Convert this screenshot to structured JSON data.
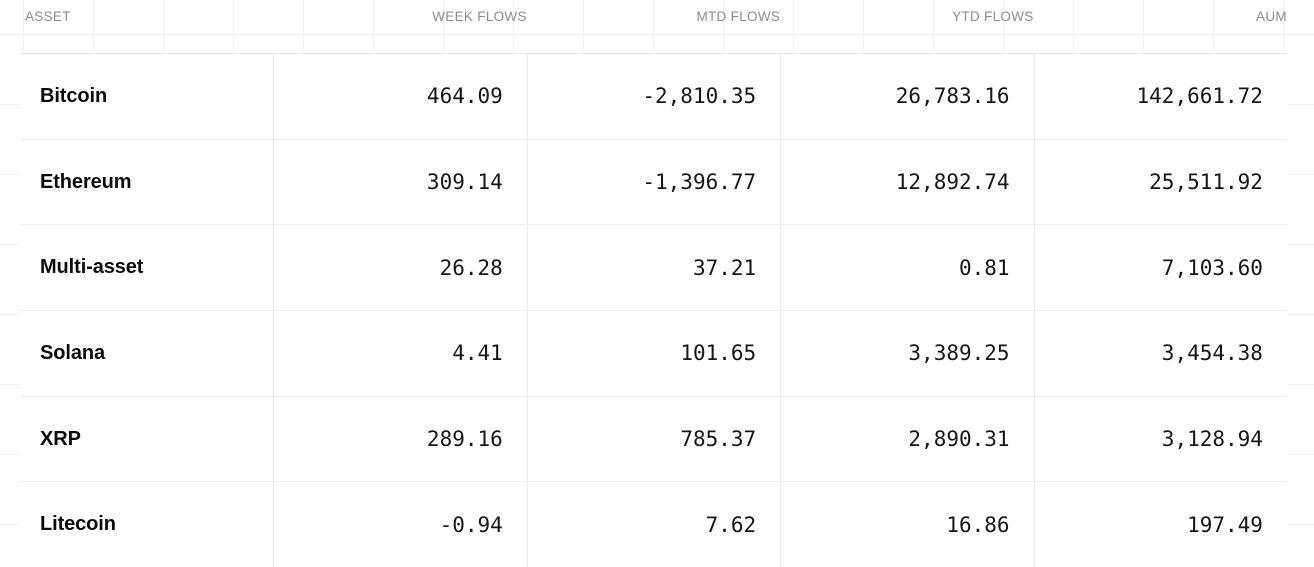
{
  "chart_data": {
    "type": "table",
    "columns": [
      "ASSET",
      "WEEK FLOWS",
      "MTD FLOWS",
      "YTD FLOWS",
      "AUM"
    ],
    "column_ids": [
      "asset",
      "week-flows",
      "mtd-flows",
      "ytd-flows",
      "aum"
    ],
    "rows": [
      [
        "Bitcoin",
        "464.09",
        "-2,810.35",
        "26,783.16",
        "142,661.72"
      ],
      [
        "Ethereum",
        "309.14",
        "-1,396.77",
        "12,892.74",
        "25,511.92"
      ],
      [
        "Multi-asset",
        "26.28",
        "37.21",
        "0.81",
        "7,103.60"
      ],
      [
        "Solana",
        "4.41",
        "101.65",
        "3,389.25",
        "3,454.38"
      ],
      [
        "XRP",
        "289.16",
        "785.37",
        "2,890.31",
        "3,128.94"
      ],
      [
        "Litecoin",
        "-0.94",
        "7.62",
        "16.86",
        "197.49"
      ]
    ],
    "layout": {
      "header_text_color": "#8d8d8d",
      "body_text_color": "#161616",
      "asset_text_color": "#0b0b0b",
      "row_border_color": "#ededed",
      "column_border_color": "#e9e9e9",
      "background_grid_color": "#f1f1f1",
      "first_column_align": "left",
      "value_columns_align": "right"
    }
  }
}
